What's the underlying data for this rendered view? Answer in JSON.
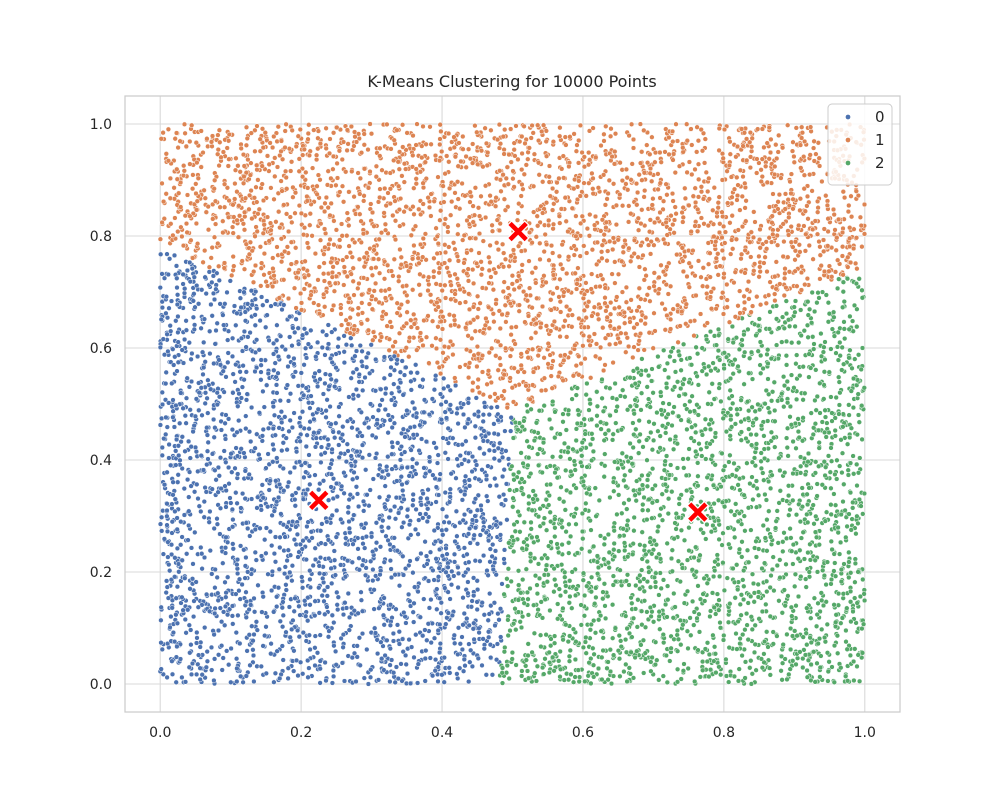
{
  "chart_data": {
    "type": "scatter",
    "title": "K-Means Clustering for 10000 Points",
    "xlabel": "",
    "ylabel": "",
    "xlim": [
      -0.05,
      1.05
    ],
    "ylim": [
      -0.05,
      1.05
    ],
    "x_ticks": [
      0.0,
      0.2,
      0.4,
      0.6,
      0.8,
      1.0
    ],
    "y_ticks": [
      0.0,
      0.2,
      0.4,
      0.6,
      0.8,
      1.0
    ],
    "x_tick_labels": [
      "0.0",
      "0.2",
      "0.4",
      "0.6",
      "0.8",
      "1.0"
    ],
    "y_tick_labels": [
      "0.0",
      "0.2",
      "0.4",
      "0.6",
      "0.8",
      "1.0"
    ],
    "grid": true,
    "legend": {
      "placement": "top-right",
      "entries": [
        {
          "label": "0",
          "color": "#4c72b0"
        },
        {
          "label": "1",
          "color": "#dd8452"
        },
        {
          "label": "2",
          "color": "#55a868"
        }
      ]
    },
    "series": [
      {
        "name": "0",
        "color": "#4c72b0",
        "point_count": 3333
      },
      {
        "name": "1",
        "color": "#dd8452",
        "point_count": 3333
      },
      {
        "name": "2",
        "color": "#55a868",
        "point_count": 3334
      }
    ],
    "centroids": [
      {
        "cluster": "0",
        "x": 0.225,
        "y": 0.328
      },
      {
        "cluster": "1",
        "x": 0.508,
        "y": 0.808
      },
      {
        "cluster": "2",
        "x": 0.763,
        "y": 0.307
      }
    ],
    "centroid_color": "#ff0000",
    "centroid_marker": "X"
  }
}
